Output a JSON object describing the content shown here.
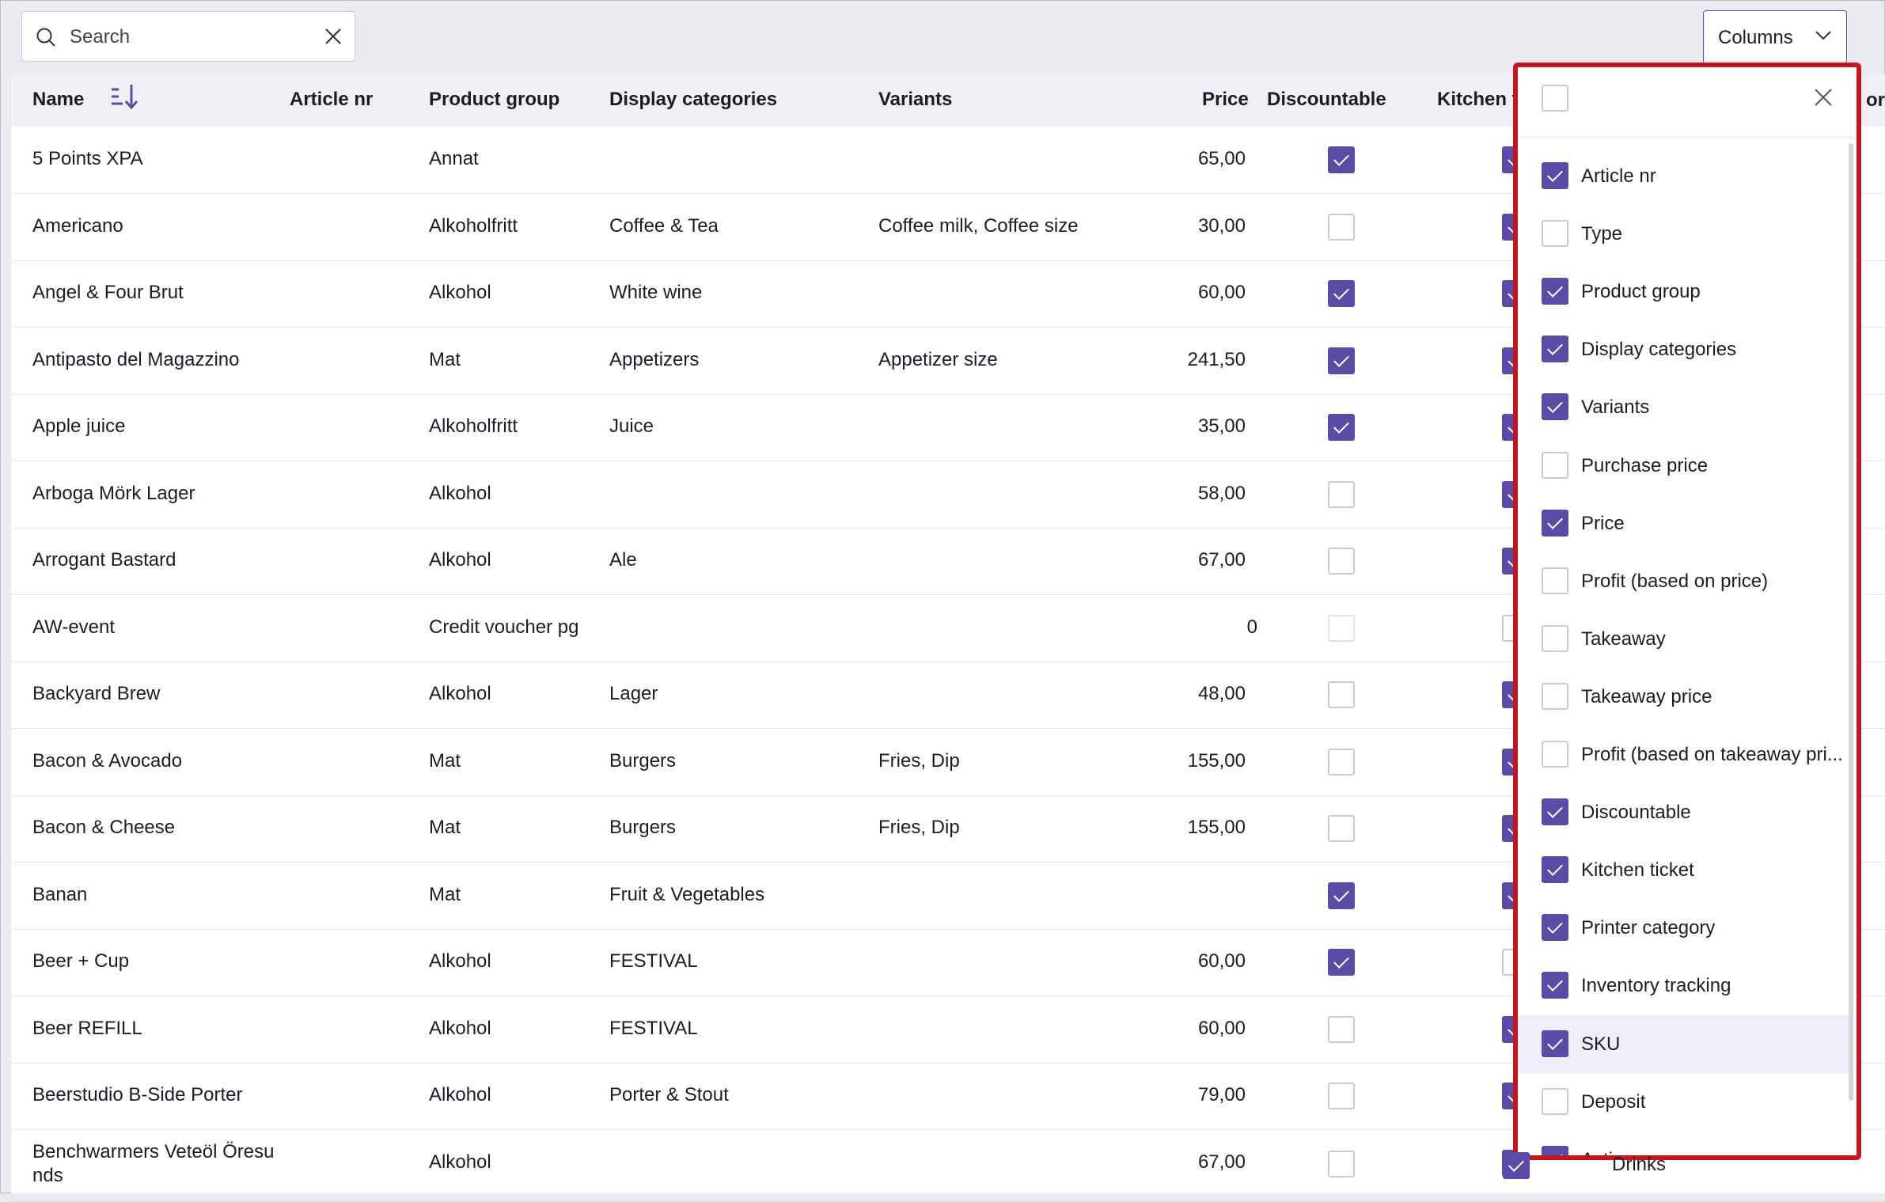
{
  "search": {
    "placeholder": "Search"
  },
  "columns_button": {
    "label": "Columns"
  },
  "table": {
    "headers": {
      "name": "Name",
      "article_nr": "Article nr",
      "product_group": "Product group",
      "display_categories": "Display categories",
      "variants": "Variants",
      "price": "Price",
      "discountable": "Discountable",
      "kitchen": "Kitchen t",
      "cut_off_right": "or"
    },
    "rows": [
      {
        "name": "5 Points XPA",
        "product_group": "Annat",
        "display_categories": "",
        "variants": "",
        "price": "65,00",
        "discountable": true,
        "kitchen": true
      },
      {
        "name": "Americano",
        "product_group": "Alkoholfritt",
        "display_categories": "Coffee & Tea",
        "variants": "Coffee milk, Coffee size",
        "price": "30,00",
        "discountable": false,
        "kitchen": true
      },
      {
        "name": "Angel & Four Brut",
        "product_group": "Alkohol",
        "display_categories": "White wine",
        "variants": "",
        "price": "60,00",
        "discountable": true,
        "kitchen": true
      },
      {
        "name": "Antipasto del Magazzino",
        "product_group": "Mat",
        "display_categories": "Appetizers",
        "variants": "Appetizer size",
        "price": "241,50",
        "discountable": true,
        "kitchen": true
      },
      {
        "name": "Apple juice",
        "product_group": "Alkoholfritt",
        "display_categories": "Juice",
        "variants": "",
        "price": "35,00",
        "discountable": true,
        "kitchen": true
      },
      {
        "name": "Arboga Mörk Lager",
        "product_group": "Alkohol",
        "display_categories": "",
        "variants": "",
        "price": "58,00",
        "discountable": false,
        "kitchen": true
      },
      {
        "name": "Arrogant Bastard",
        "product_group": "Alkohol",
        "display_categories": "Ale",
        "variants": "",
        "price": "67,00",
        "discountable": false,
        "kitchen": true
      },
      {
        "name": "AW-event",
        "product_group": "Credit voucher pg",
        "display_categories": "",
        "variants": "",
        "price": "0",
        "discountable": false,
        "kitchen": false
      },
      {
        "name": "Backyard Brew",
        "product_group": "Alkohol",
        "display_categories": "Lager",
        "variants": "",
        "price": "48,00",
        "discountable": false,
        "kitchen": true
      },
      {
        "name": "Bacon & Avocado",
        "product_group": "Mat",
        "display_categories": "Burgers",
        "variants": "Fries, Dip",
        "price": "155,00",
        "discountable": false,
        "kitchen": true
      },
      {
        "name": "Bacon & Cheese",
        "product_group": "Mat",
        "display_categories": "Burgers",
        "variants": "Fries, Dip",
        "price": "155,00",
        "discountable": false,
        "kitchen": true
      },
      {
        "name": "Banan",
        "product_group": "Mat",
        "display_categories": "Fruit & Vegetables",
        "variants": "",
        "price": "",
        "discountable": true,
        "kitchen": true
      },
      {
        "name": "Beer + Cup",
        "product_group": "Alkohol",
        "display_categories": "FESTIVAL",
        "variants": "",
        "price": "60,00",
        "discountable": true,
        "kitchen": false
      },
      {
        "name": "Beer REFILL",
        "product_group": "Alkohol",
        "display_categories": "FESTIVAL",
        "variants": "",
        "price": "60,00",
        "discountable": false,
        "kitchen": true
      },
      {
        "name": "Beerstudio B-Side Porter",
        "product_group": "Alkohol",
        "display_categories": "Porter & Stout",
        "variants": "",
        "price": "79,00",
        "discountable": false,
        "kitchen": true
      },
      {
        "name": "Benchwarmers Veteöl Öresu",
        "name_line2": "nds",
        "product_group": "Alkohol",
        "display_categories": "",
        "variants": "",
        "price": "67,00",
        "discountable": false,
        "kitchen": true
      }
    ],
    "peek_text": "Drinks"
  },
  "columns_panel": {
    "options": [
      {
        "label": "Article nr",
        "checked": true
      },
      {
        "label": "Type",
        "checked": false
      },
      {
        "label": "Product group",
        "checked": true
      },
      {
        "label": "Display categories",
        "checked": true
      },
      {
        "label": "Variants",
        "checked": true
      },
      {
        "label": "Purchase price",
        "checked": false
      },
      {
        "label": "Price",
        "checked": true
      },
      {
        "label": "Profit (based on price)",
        "checked": false
      },
      {
        "label": "Takeaway",
        "checked": false
      },
      {
        "label": "Takeaway price",
        "checked": false
      },
      {
        "label": "Profit (based on takeaway pri...",
        "checked": false
      },
      {
        "label": "Discountable",
        "checked": true
      },
      {
        "label": "Kitchen ticket",
        "checked": true
      },
      {
        "label": "Printer category",
        "checked": true
      },
      {
        "label": "Inventory tracking",
        "checked": true
      },
      {
        "label": "SKU",
        "checked": true,
        "highlighted": true
      },
      {
        "label": "Deposit",
        "checked": false
      },
      {
        "label": "Active",
        "checked": true
      }
    ]
  },
  "colors": {
    "accent": "#5b4aa6",
    "highlight_border": "#c4161c",
    "header_bg": "#eef0f4"
  }
}
